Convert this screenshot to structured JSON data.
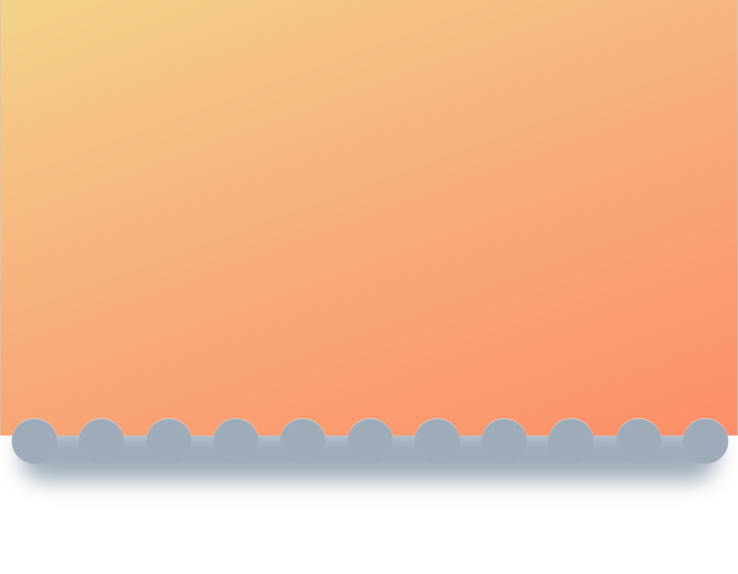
{
  "colors": {
    "gradient_start": "#f4d38a",
    "gradient_mid": "#f7ad7a",
    "gradient_end": "#fd8f68",
    "scallop": "#9eacba",
    "shadow": "#9eacba",
    "page_background": "#ffffff"
  },
  "scallop_count": 11
}
